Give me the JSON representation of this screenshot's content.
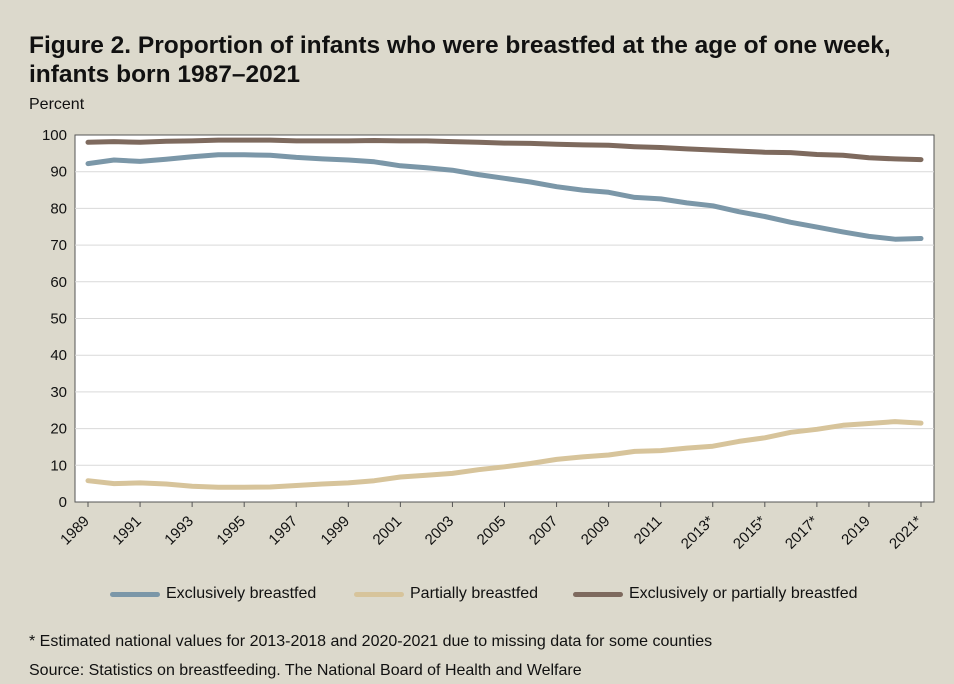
{
  "title": "Figure 2. Proportion of infants who were breastfed at the age of one week, infants born 1987–2021",
  "unit_label": "Percent",
  "footnote": "* Estimated national values for 2013-2018 and 2020-2021 due to missing data for some counties",
  "source": "Source: Statistics on breastfeeding. The National Board of Health and Welfare",
  "colors": {
    "background": "#dcd9cc",
    "plot_background": "#ffffff",
    "exclusive": "#7b97a8",
    "partial": "#d7c49b",
    "any": "#7e6a5e",
    "gridline": "#d9d9d9"
  },
  "chart_data": {
    "type": "line",
    "ylim": [
      0,
      100
    ],
    "yticks": [
      "0",
      "10",
      "20",
      "30",
      "40",
      "50",
      "60",
      "70",
      "80",
      "90",
      "100"
    ],
    "x": [
      1989,
      1990,
      1991,
      1992,
      1993,
      1994,
      1995,
      1996,
      1997,
      1998,
      1999,
      2000,
      2001,
      2002,
      2003,
      2004,
      2005,
      2006,
      2007,
      2008,
      2009,
      2010,
      2011,
      2012,
      2013,
      2014,
      2015,
      2016,
      2017,
      2018,
      2019,
      2020,
      2021
    ],
    "xtick_labels": [
      "1989",
      "1991",
      "1993",
      "1995",
      "1997",
      "1999",
      "2001",
      "2003",
      "2005",
      "2007",
      "2009",
      "2011",
      "2013*",
      "2015*",
      "2017*",
      "2019",
      "2021*"
    ],
    "xtick_values": [
      1989,
      1991,
      1993,
      1995,
      1997,
      1999,
      2001,
      2003,
      2005,
      2007,
      2009,
      2011,
      2013,
      2015,
      2017,
      2019,
      2021
    ],
    "grid": true,
    "legend_position": "bottom",
    "series": [
      {
        "name": "Exclusively breastfed",
        "values": [
          92.2,
          93.2,
          92.8,
          93.4,
          94.1,
          94.6,
          94.6,
          94.5,
          93.9,
          93.5,
          93.2,
          92.7,
          91.6,
          91.1,
          90.4,
          89.2,
          88.2,
          87.2,
          85.9,
          85.0,
          84.4,
          83.0,
          82.6,
          81.5,
          80.7,
          79.1,
          77.8,
          76.2,
          74.9,
          73.6,
          72.4,
          71.6,
          71.8
        ]
      },
      {
        "name": "Partially breastfed",
        "values": [
          5.8,
          5.0,
          5.2,
          4.9,
          4.3,
          4.0,
          4.0,
          4.1,
          4.5,
          4.9,
          5.2,
          5.8,
          6.8,
          7.3,
          7.8,
          8.8,
          9.6,
          10.5,
          11.6,
          12.3,
          12.8,
          13.8,
          14.0,
          14.7,
          15.2,
          16.5,
          17.5,
          19.0,
          19.8,
          20.9,
          21.4,
          21.9,
          21.5
        ]
      },
      {
        "name": "Exclusively or partially breastfed",
        "values": [
          98.0,
          98.2,
          98.0,
          98.3,
          98.4,
          98.6,
          98.6,
          98.6,
          98.4,
          98.4,
          98.4,
          98.5,
          98.4,
          98.4,
          98.2,
          98.0,
          97.8,
          97.7,
          97.5,
          97.3,
          97.2,
          96.8,
          96.6,
          96.2,
          95.9,
          95.6,
          95.3,
          95.2,
          94.7,
          94.5,
          93.8,
          93.5,
          93.3
        ]
      }
    ]
  }
}
